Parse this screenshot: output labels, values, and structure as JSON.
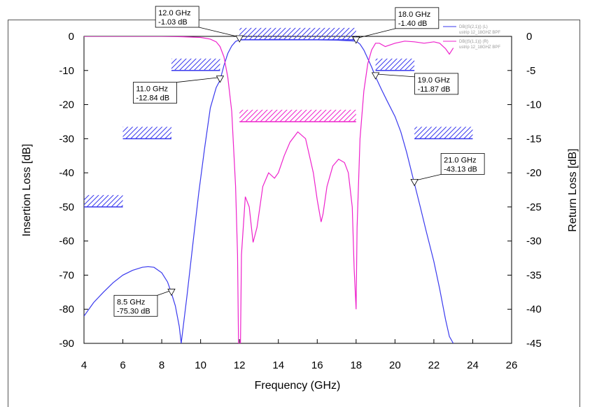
{
  "chart_data": {
    "type": "line",
    "xlabel": "Frequency (GHz)",
    "ylabel_left": "Insertion Loss [dB]",
    "ylabel_right": "Return Loss [dB]",
    "xlim": [
      4,
      26
    ],
    "ylim_left": [
      -90,
      0
    ],
    "ylim_right": [
      -45,
      0
    ],
    "x_ticks": [
      "4",
      "6",
      "8",
      "10",
      "12",
      "14",
      "16",
      "18",
      "20",
      "22",
      "24",
      "26"
    ],
    "y_ticks_left": [
      "0",
      "-10",
      "-20",
      "-30",
      "-40",
      "-50",
      "-60",
      "-70",
      "-80",
      "-90"
    ],
    "y_ticks_right": [
      "0",
      "-5",
      "-10",
      "-15",
      "-20",
      "-25",
      "-30",
      "-35",
      "-40",
      "-45"
    ],
    "grid": false,
    "legend": [
      {
        "name": "DB(|S(2,1)|) (L)",
        "sub": "ustrip 12_18GHZ BPF",
        "color": "#3a3aee"
      },
      {
        "name": "DB(|S(1,1)|) (R)",
        "sub": "ustrip 12_18GHZ BPF",
        "color": "#ee22cc"
      }
    ],
    "legend_position": "top-right",
    "series": [
      {
        "name": "DB(|S(2,1)|) (L)",
        "axis": "left",
        "color": "#3a3aee",
        "x": [
          4.0,
          4.5,
          5.0,
          5.5,
          6.0,
          6.5,
          7.0,
          7.3,
          7.6,
          8.0,
          8.3,
          8.5,
          8.7,
          8.9,
          9.0,
          9.3,
          9.6,
          9.9,
          10.2,
          10.5,
          10.8,
          11.0,
          11.2,
          11.4,
          11.6,
          11.8,
          12.0,
          13.0,
          14.0,
          15.0,
          16.0,
          17.0,
          18.0,
          18.2,
          18.4,
          18.6,
          18.8,
          19.0,
          19.3,
          19.6,
          20.0,
          20.3,
          20.6,
          21.0,
          21.3,
          21.6,
          22.0,
          22.3,
          22.6,
          22.8,
          23.0
        ],
        "y": [
          -82,
          -78,
          -75,
          -72.2,
          -70,
          -68.6,
          -67.7,
          -67.5,
          -67.7,
          -69.3,
          -72,
          -75.3,
          -79,
          -85,
          -90,
          -76,
          -61,
          -46,
          -33,
          -21,
          -15,
          -12.84,
          -8.5,
          -5.0,
          -2.8,
          -1.5,
          -1.03,
          -0.95,
          -0.9,
          -0.95,
          -1.0,
          -1.1,
          -1.4,
          -2.3,
          -4.0,
          -6.5,
          -9.0,
          -11.87,
          -15.5,
          -19.0,
          -23.5,
          -28,
          -34,
          -43.13,
          -50,
          -57,
          -66,
          -74,
          -83,
          -88,
          -90
        ]
      },
      {
        "name": "DB(|S(1,1)|) (R)",
        "axis": "right",
        "color": "#ee22cc",
        "x": [
          4.0,
          8.0,
          9.0,
          10.0,
          10.5,
          10.8,
          11.0,
          11.2,
          11.4,
          11.6,
          11.8,
          11.9,
          11.95,
          12.05,
          12.1,
          12.3,
          12.5,
          12.7,
          12.9,
          13.2,
          13.5,
          13.8,
          14.0,
          14.3,
          14.6,
          15.0,
          15.4,
          15.8,
          16.0,
          16.2,
          16.3,
          16.5,
          16.8,
          17.1,
          17.4,
          17.6,
          17.8,
          17.9,
          18.0,
          18.05,
          18.2,
          18.4,
          18.6,
          18.8,
          19.0,
          19.2,
          19.5,
          20.0,
          20.5,
          21.0,
          21.5,
          22.0,
          22.3,
          22.6,
          22.8,
          23.0
        ],
        "y": [
          0.0,
          0.0,
          -0.05,
          -0.15,
          -0.4,
          -0.8,
          -1.5,
          -3.0,
          -6.0,
          -11.0,
          -22.0,
          -32.0,
          -45.0,
          -45.0,
          -32.0,
          -23.5,
          -25.0,
          -30.2,
          -28.0,
          -22.0,
          -20.0,
          -20.8,
          -20.0,
          -17.5,
          -15.5,
          -14.0,
          -15.0,
          -20.0,
          -24.0,
          -27.2,
          -26.0,
          -22.0,
          -19.0,
          -18.0,
          -18.5,
          -20.0,
          -25.0,
          -34.0,
          -40.0,
          -28.0,
          -15.0,
          -8.0,
          -4.0,
          -2.0,
          -1.0,
          -1.0,
          -1.5,
          -1.0,
          -0.7,
          -0.8,
          -1.0,
          -0.8,
          -1.0,
          -1.8,
          -2.6,
          -1.7
        ]
      }
    ],
    "masks": [
      {
        "axis": "left",
        "color": "#3a3aee",
        "x1": 4.0,
        "x2": 6.0,
        "y": -50
      },
      {
        "axis": "left",
        "color": "#3a3aee",
        "x1": 6.0,
        "x2": 8.5,
        "y": -30
      },
      {
        "axis": "left",
        "color": "#3a3aee",
        "x1": 8.5,
        "x2": 11.0,
        "y": -10
      },
      {
        "axis": "left",
        "color": "#3a3aee",
        "x1": 12.0,
        "x2": 18.0,
        "y": -1
      },
      {
        "axis": "left",
        "color": "#3a3aee",
        "x1": 19.0,
        "x2": 21.0,
        "y": -10
      },
      {
        "axis": "left",
        "color": "#3a3aee",
        "x1": 21.0,
        "x2": 24.0,
        "y": -30
      },
      {
        "axis": "right",
        "color": "#ee22cc",
        "x1": 12.0,
        "x2": 18.0,
        "y": -12.5
      }
    ],
    "markers": [
      {
        "x": 8.5,
        "y": -75.3,
        "label1": "8.5 GHz",
        "label2": "-75.30 dB",
        "side": "left"
      },
      {
        "x": 11.0,
        "y": -12.84,
        "label1": "11.0 GHz",
        "label2": "-12.84 dB",
        "side": "left"
      },
      {
        "x": 12.0,
        "y": -1.03,
        "label1": "12.0 GHz",
        "label2": "-1.03 dB",
        "side": "up-left"
      },
      {
        "x": 18.0,
        "y": -1.4,
        "label1": "18.0 GHz",
        "label2": "-1.40 dB",
        "side": "up-right"
      },
      {
        "x": 19.0,
        "y": -11.87,
        "label1": "19.0 GHz",
        "label2": "-11.87 dB",
        "side": "right"
      },
      {
        "x": 21.0,
        "y": -43.13,
        "label1": "21.0 GHz",
        "label2": "-43.13 dB",
        "side": "right"
      }
    ]
  }
}
